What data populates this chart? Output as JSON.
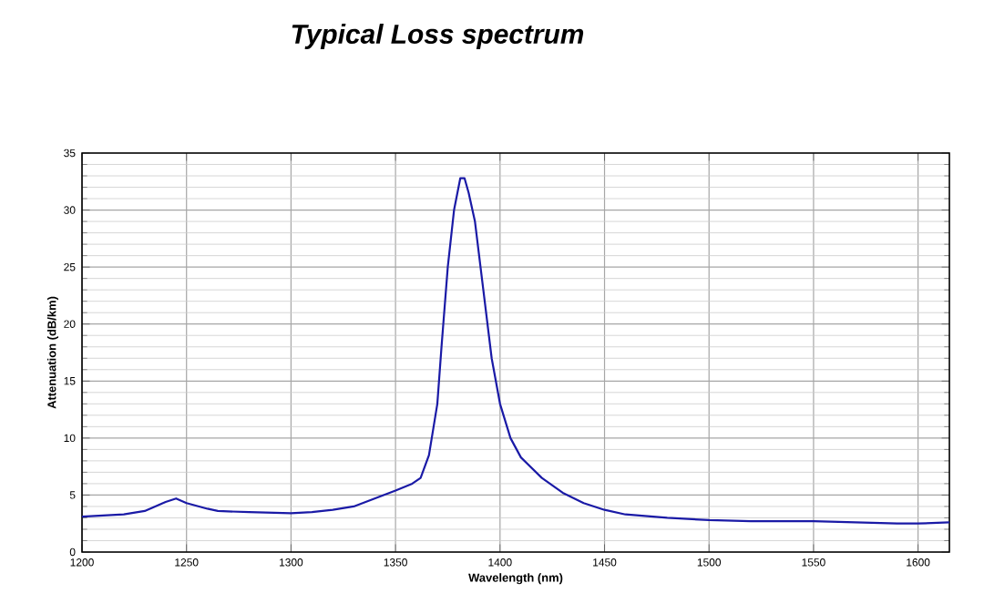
{
  "chart_data": {
    "type": "line",
    "title": "Typical Loss spectrum",
    "xlabel": "Wavelength (nm)",
    "ylabel": "Attenuation (dB/km)",
    "x": [
      1200,
      1210,
      1220,
      1230,
      1240,
      1245,
      1250,
      1260,
      1265,
      1280,
      1300,
      1310,
      1320,
      1330,
      1340,
      1350,
      1358,
      1362,
      1366,
      1370,
      1372,
      1375,
      1378,
      1381,
      1383,
      1385,
      1388,
      1392,
      1396,
      1400,
      1405,
      1410,
      1420,
      1430,
      1440,
      1450,
      1460,
      1480,
      1500,
      1520,
      1550,
      1570,
      1590,
      1600,
      1615
    ],
    "series": [
      {
        "color": "#1a1aa6",
        "values": [
          3.1,
          3.2,
          3.3,
          3.6,
          4.4,
          4.7,
          4.3,
          3.8,
          3.6,
          3.5,
          3.4,
          3.5,
          3.7,
          4.0,
          4.7,
          5.4,
          6.0,
          6.5,
          8.5,
          13,
          18,
          25,
          30,
          32.8,
          32.8,
          31.5,
          29,
          23,
          17,
          13,
          10,
          8.3,
          6.5,
          5.2,
          4.3,
          3.7,
          3.3,
          3.0,
          2.8,
          2.7,
          2.7,
          2.6,
          2.5,
          2.5,
          2.6
        ]
      }
    ],
    "xlim": [
      1200,
      1615
    ],
    "ylim": [
      0,
      35
    ],
    "xticks": [
      1200,
      1250,
      1300,
      1350,
      1400,
      1450,
      1500,
      1550,
      1600
    ],
    "yticks": [
      0,
      5,
      10,
      15,
      20,
      25,
      30,
      35
    ],
    "grid": true,
    "marker": "none",
    "line_style": "solid"
  }
}
